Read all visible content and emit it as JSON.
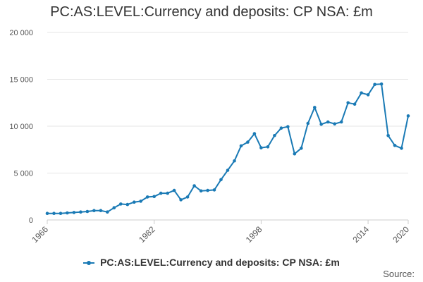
{
  "title": "PC:AS:LEVEL:Currency and deposits: CP NSA: £m",
  "source_label": "Source:",
  "colors": {
    "series": "#1a7ab5",
    "grid": "#e6e6e6",
    "axis": "#cccccc"
  },
  "chart_data": {
    "type": "line",
    "title": "PC:AS:LEVEL:Currency and deposits: CP NSA: £m",
    "xlabel": "",
    "ylabel": "",
    "xlim": [
      1966,
      2020
    ],
    "ylim": [
      0,
      20000
    ],
    "x_ticks": [
      1966,
      1982,
      1998,
      2014,
      2020
    ],
    "y_ticks": [
      0,
      5000,
      10000,
      15000,
      20000
    ],
    "y_tick_labels": [
      "0",
      "5 000",
      "10 000",
      "15 000",
      "20 000"
    ],
    "grid": true,
    "legend_position": "bottom",
    "series": [
      {
        "name": "PC:AS:LEVEL:Currency and deposits: CP NSA: £m",
        "x": [
          1966,
          1967,
          1968,
          1969,
          1970,
          1971,
          1972,
          1973,
          1974,
          1975,
          1976,
          1977,
          1978,
          1979,
          1980,
          1981,
          1982,
          1983,
          1984,
          1985,
          1986,
          1987,
          1988,
          1989,
          1990,
          1991,
          1992,
          1993,
          1994,
          1995,
          1996,
          1997,
          1998,
          1999,
          2000,
          2001,
          2002,
          2003,
          2004,
          2005,
          2006,
          2007,
          2008,
          2009,
          2010,
          2011,
          2012,
          2013,
          2014,
          2015,
          2016,
          2017,
          2018,
          2019,
          2020
        ],
        "values": [
          700,
          700,
          700,
          750,
          800,
          850,
          900,
          1000,
          1000,
          850,
          1300,
          1700,
          1650,
          1900,
          2000,
          2450,
          2500,
          2850,
          2850,
          3150,
          2150,
          2450,
          3650,
          3100,
          3150,
          3200,
          4300,
          5300,
          6300,
          7900,
          8300,
          9200,
          7700,
          7800,
          9000,
          9800,
          9950,
          7050,
          7650,
          10300,
          12000,
          10200,
          10450,
          10250,
          10450,
          12500,
          12350,
          13550,
          13350,
          14450,
          14500,
          9000,
          7950,
          7650,
          11100
        ]
      }
    ]
  }
}
